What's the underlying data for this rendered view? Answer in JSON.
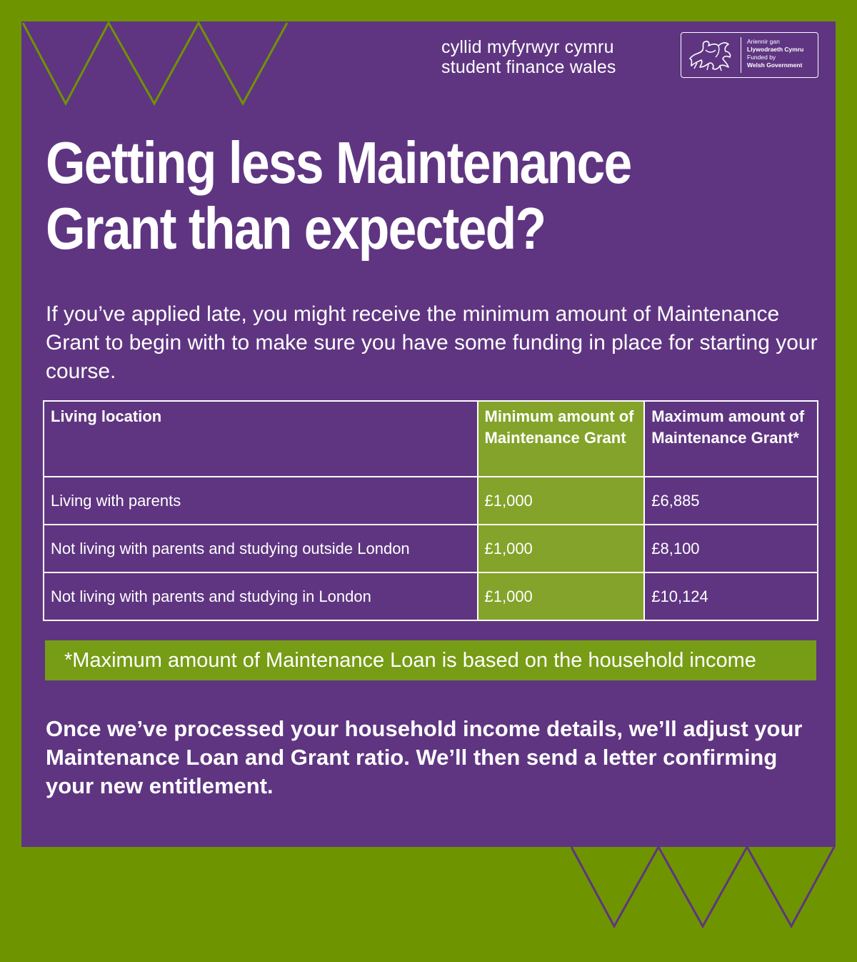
{
  "colors": {
    "background_green": "#6e9400",
    "panel_purple": "#5f3581",
    "highlight_green": "#84a32a",
    "note_green": "#779c15",
    "text": "#ffffff"
  },
  "brand": {
    "welsh_name": "cyllid myfyrwyr cymru",
    "english_name": "student finance wales"
  },
  "government_logo": {
    "icon": "welsh-dragon-icon",
    "welsh_line1": "Ariennir gan",
    "welsh_line2": "Llywodraeth Cymru",
    "english_line1": "Funded by",
    "english_line2": "Welsh Government"
  },
  "headline": {
    "line1": "Getting less Maintenance",
    "line2": "Grant than expected?"
  },
  "intro": "If you’ve applied late, you might receive the minimum amount of Maintenance Grant to begin with to make sure you have some funding in place for starting your course.",
  "table": {
    "headers": [
      "Living location",
      "Minimum amount of Maintenance Grant",
      "Maximum amount of Maintenance Grant*"
    ],
    "rows": [
      {
        "location": "Living with parents",
        "minimum": "£1,000",
        "maximum": "£6,885"
      },
      {
        "location": "Not living with parents and studying outside London",
        "minimum": "£1,000",
        "maximum": "£8,100"
      },
      {
        "location": "Not living with parents and studying in London",
        "minimum": "£1,000",
        "maximum": "£10,124"
      }
    ]
  },
  "note": "*Maximum amount of Maintenance Loan is based on the household income",
  "closing": "Once we’ve processed your household income details, we’ll adjust your Maintenance Loan and Grant ratio. We’ll then send a letter confirming your new entitlement."
}
